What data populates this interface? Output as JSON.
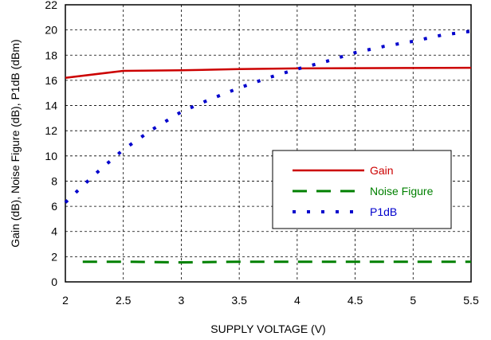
{
  "chart_data": {
    "type": "line",
    "xlabel": "SUPPLY VOLTAGE (V)",
    "ylabel": "Gain (dB), Noise Figure (dB), P1dB (dBm)",
    "xlim": [
      2,
      5.5
    ],
    "ylim": [
      0,
      22
    ],
    "x_ticks": [
      "2",
      "2.5",
      "3",
      "3.5",
      "4",
      "4.5",
      "5",
      "5.5"
    ],
    "y_ticks": [
      "0",
      "2",
      "4",
      "6",
      "8",
      "10",
      "12",
      "14",
      "16",
      "18",
      "20",
      "22"
    ],
    "grid": true,
    "legend_position": "center-right",
    "series": [
      {
        "name": "Gain",
        "color": "#cc0000",
        "style": "solid",
        "x": [
          2,
          2.5,
          3,
          3.5,
          4,
          4.5,
          5,
          5.5
        ],
        "y": [
          16.2,
          16.75,
          16.8,
          16.9,
          16.95,
          16.97,
          16.98,
          17.0
        ]
      },
      {
        "name": "Noise Figure",
        "color": "#008000",
        "style": "long-dash",
        "x": [
          2.15,
          2.5,
          3,
          3.5,
          4,
          4.5,
          5,
          5.5
        ],
        "y": [
          1.6,
          1.6,
          1.55,
          1.6,
          1.6,
          1.6,
          1.6,
          1.6
        ]
      },
      {
        "name": "P1dB",
        "color": "#0000cc",
        "style": "dotted",
        "x": [
          2,
          2.25,
          2.5,
          2.75,
          3,
          3.25,
          3.5,
          3.75,
          4,
          4.25,
          4.5,
          4.75,
          5,
          5.25,
          5.5
        ],
        "y": [
          6.3,
          8.5,
          10.5,
          12.1,
          13.5,
          14.5,
          15.4,
          16.2,
          16.9,
          17.5,
          18.2,
          18.7,
          19.1,
          19.6,
          19.9
        ]
      }
    ]
  }
}
